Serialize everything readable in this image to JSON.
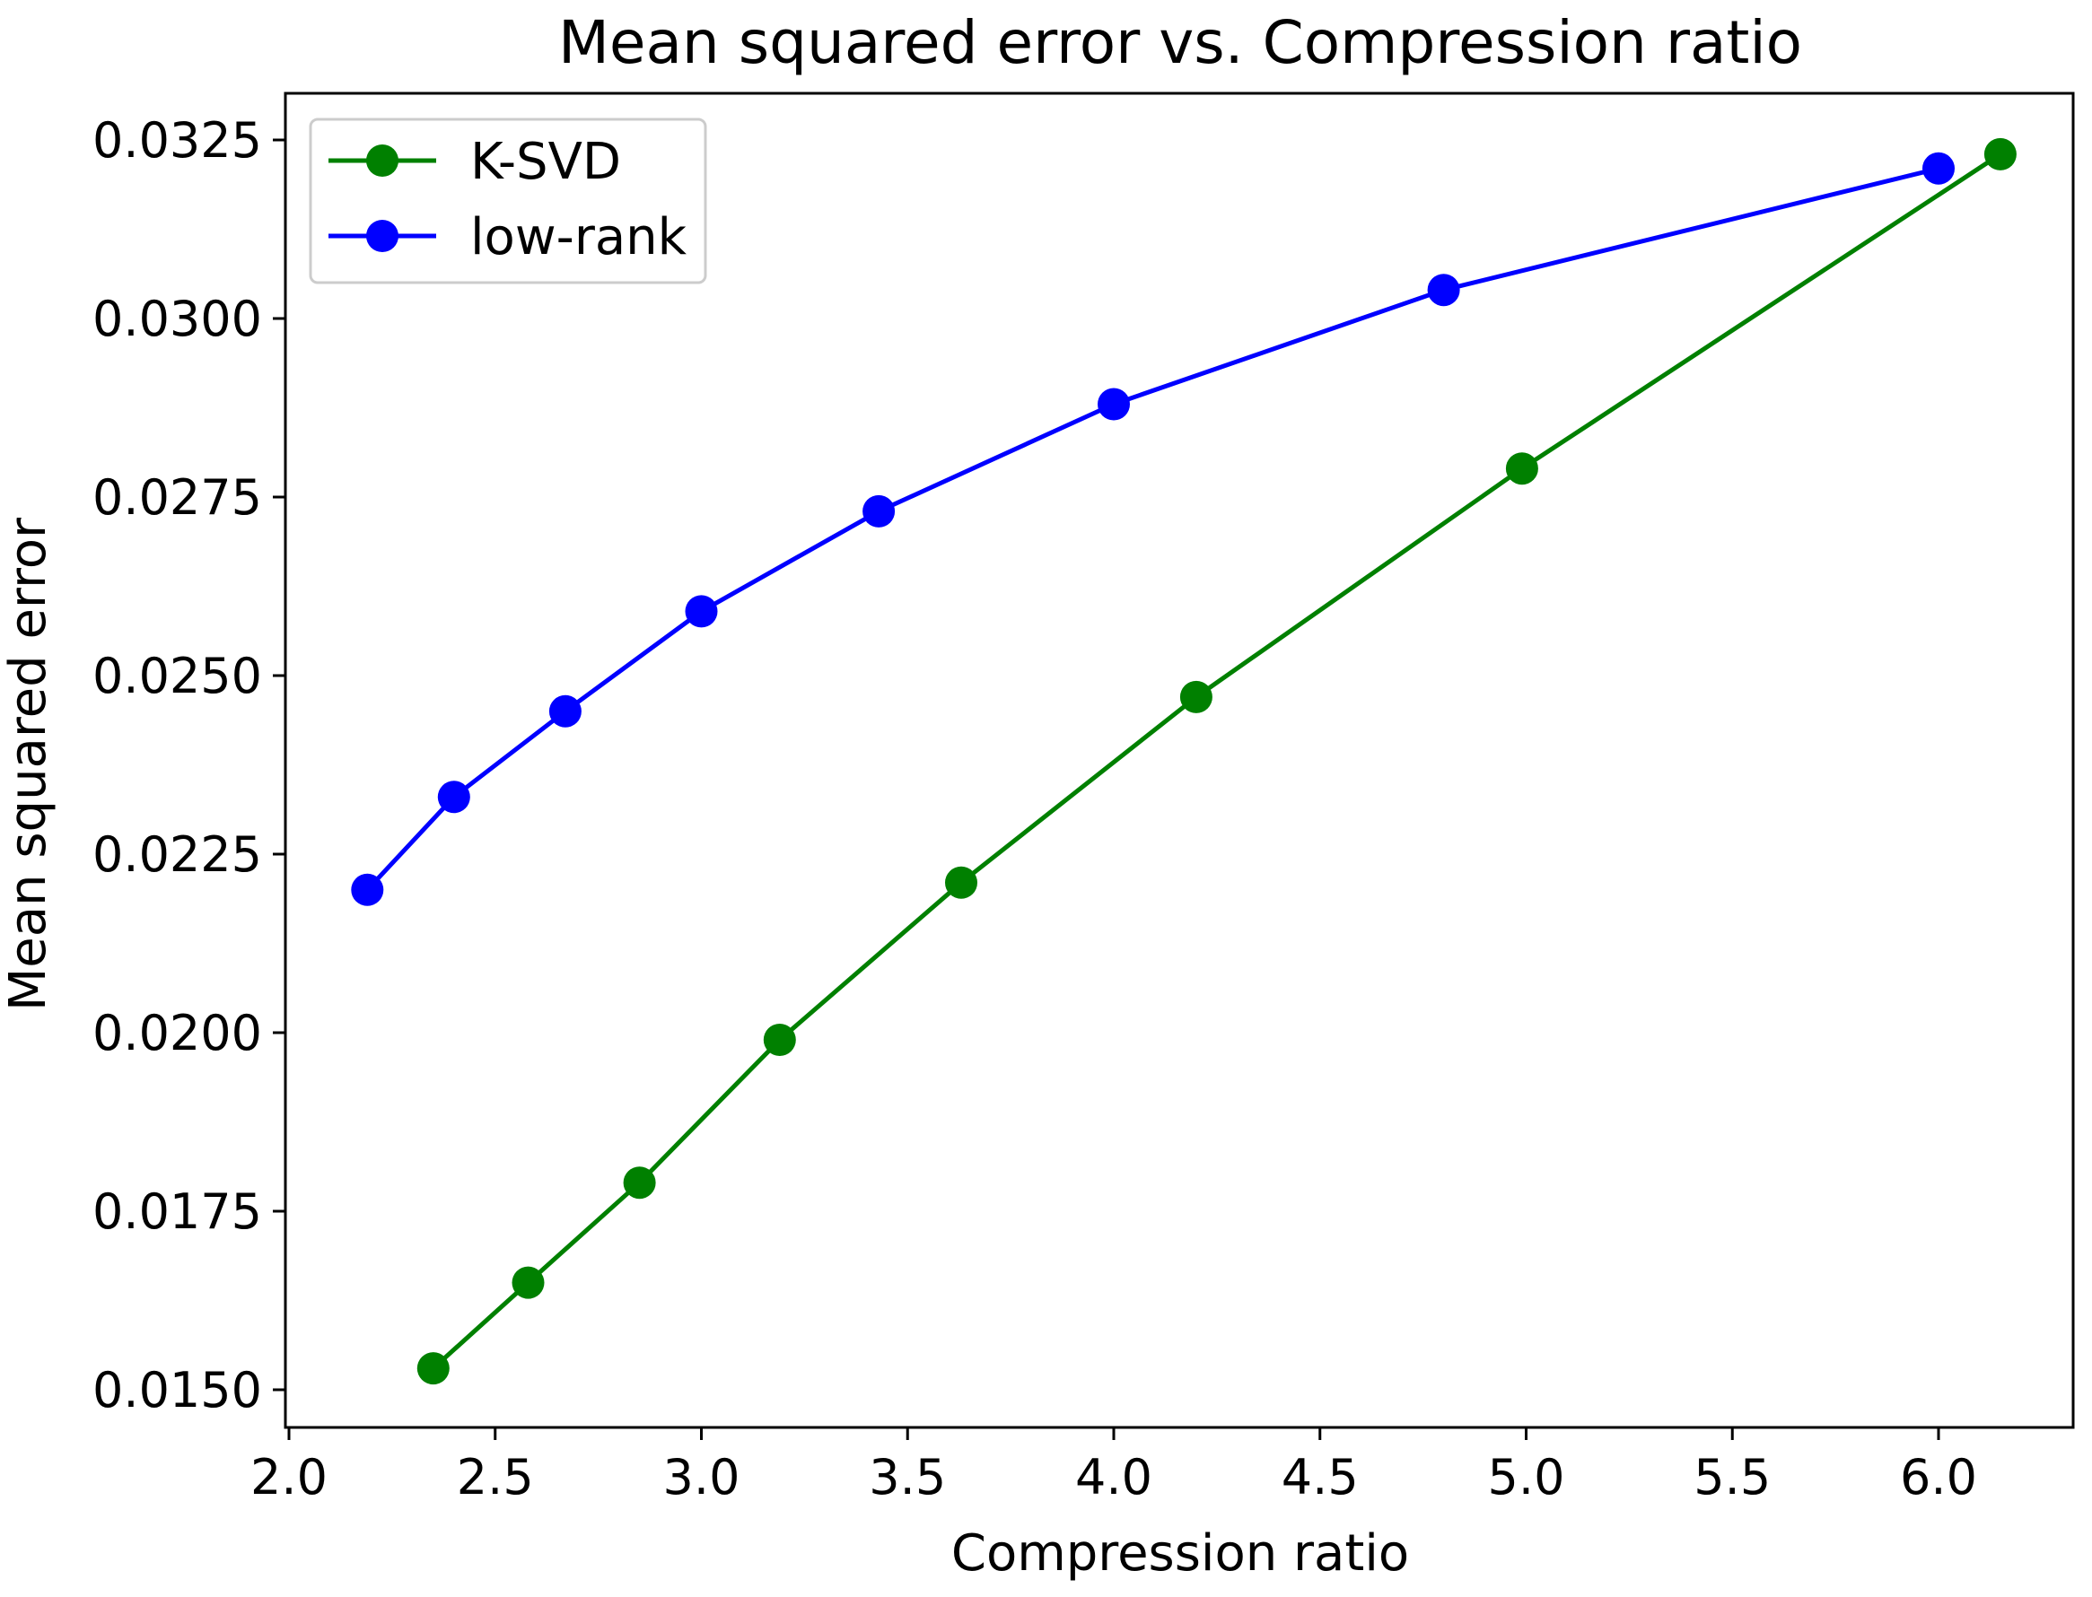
{
  "chart_data": {
    "type": "line",
    "title": "Mean squared error vs. Compression ratio",
    "xlabel": "Compression ratio",
    "ylabel": "Mean squared error",
    "xlim": [
      1.99,
      6.33
    ],
    "ylim": [
      0.0145,
      0.03319
    ],
    "xticks": [
      2.0,
      2.5,
      3.0,
      3.5,
      4.0,
      4.5,
      5.0,
      5.5,
      6.0
    ],
    "xtick_labels": [
      "2.0",
      "2.5",
      "3.0",
      "3.5",
      "4.0",
      "4.5",
      "5.0",
      "5.5",
      "6.0"
    ],
    "yticks": [
      0.015,
      0.0175,
      0.02,
      0.0225,
      0.025,
      0.0275,
      0.03,
      0.0325
    ],
    "ytick_labels": [
      "0.0150",
      "0.0175",
      "0.0200",
      "0.0225",
      "0.0250",
      "0.0275",
      "0.0300",
      "0.0325"
    ],
    "grid": false,
    "legend_position": "top-left",
    "series": [
      {
        "name": "K-SVD",
        "color": "#008000",
        "marker": "circle",
        "x": [
          2.35,
          2.58,
          2.85,
          3.19,
          3.63,
          4.2,
          4.99,
          6.15
        ],
        "y": [
          0.0153,
          0.0165,
          0.0179,
          0.0199,
          0.0221,
          0.0247,
          0.0279,
          0.0323
        ]
      },
      {
        "name": "low-rank",
        "color": "#0000ff",
        "marker": "circle",
        "x": [
          2.19,
          2.4,
          2.67,
          3.0,
          3.43,
          4.0,
          4.8,
          6.0
        ],
        "y": [
          0.022,
          0.0233,
          0.0245,
          0.0259,
          0.0273,
          0.0288,
          0.0304,
          0.0321
        ]
      }
    ]
  }
}
